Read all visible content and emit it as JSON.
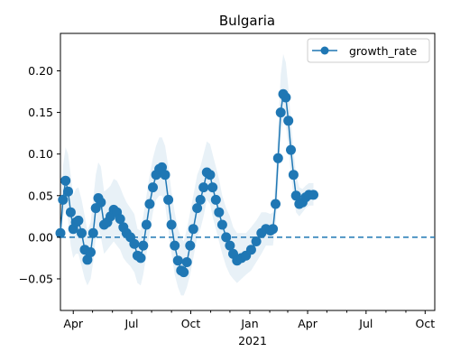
{
  "chart_data": {
    "type": "line",
    "title": "Bulgaria",
    "xlabel": "",
    "ylabel": "",
    "x_range": [
      "2020-03-12",
      "2021-10-16"
    ],
    "ylim": [
      -0.088,
      0.245
    ],
    "y_ticks": [
      -0.05,
      0.0,
      0.05,
      0.1,
      0.15,
      0.2
    ],
    "y_tick_labels": [
      "−0.05",
      "0.00",
      "0.05",
      "0.10",
      "0.15",
      "0.20"
    ],
    "x_ticks": [
      {
        "date": "2020-04-01",
        "label": "Apr"
      },
      {
        "date": "2020-07-01",
        "label": "Jul"
      },
      {
        "date": "2020-10-01",
        "label": "Oct"
      },
      {
        "date": "2021-01-01",
        "label": "Jan"
      },
      {
        "date": "2021-04-01",
        "label": "Apr"
      },
      {
        "date": "2021-07-01",
        "label": "Jul"
      },
      {
        "date": "2021-10-01",
        "label": "Oct"
      }
    ],
    "x_year_label": "2021",
    "legend": {
      "placement": "top-right"
    },
    "reference_line": {
      "y": 0,
      "style": "dashed"
    },
    "series": [
      {
        "name": "growth_rate",
        "color": "#1f77b4",
        "marker": "circle",
        "band_color": "#1f77b4",
        "points": [
          {
            "x": "2020-03-12",
            "y": 0.005,
            "lo": -0.005,
            "hi": 0.015
          },
          {
            "x": "2020-03-16",
            "y": 0.045,
            "lo": 0.025,
            "hi": 0.085
          },
          {
            "x": "2020-03-20",
            "y": 0.068,
            "lo": 0.035,
            "hi": 0.108
          },
          {
            "x": "2020-03-24",
            "y": 0.055,
            "lo": 0.02,
            "hi": 0.1
          },
          {
            "x": "2020-03-28",
            "y": 0.03,
            "lo": -0.01,
            "hi": 0.075
          },
          {
            "x": "2020-04-01",
            "y": 0.01,
            "lo": -0.025,
            "hi": 0.05
          },
          {
            "x": "2020-04-05",
            "y": 0.018,
            "lo": -0.02,
            "hi": 0.058
          },
          {
            "x": "2020-04-09",
            "y": 0.02,
            "lo": -0.02,
            "hi": 0.06
          },
          {
            "x": "2020-04-14",
            "y": 0.005,
            "lo": -0.035,
            "hi": 0.045
          },
          {
            "x": "2020-04-19",
            "y": -0.015,
            "lo": -0.05,
            "hi": 0.025
          },
          {
            "x": "2020-04-23",
            "y": -0.027,
            "lo": -0.058,
            "hi": 0.008
          },
          {
            "x": "2020-04-28",
            "y": -0.018,
            "lo": -0.05,
            "hi": 0.018
          },
          {
            "x": "2020-05-02",
            "y": 0.005,
            "lo": -0.03,
            "hi": 0.045
          },
          {
            "x": "2020-05-06",
            "y": 0.035,
            "lo": 0.0,
            "hi": 0.075
          },
          {
            "x": "2020-05-10",
            "y": 0.047,
            "lo": 0.01,
            "hi": 0.09
          },
          {
            "x": "2020-05-14",
            "y": 0.042,
            "lo": 0.0,
            "hi": 0.085
          },
          {
            "x": "2020-05-19",
            "y": 0.015,
            "lo": -0.02,
            "hi": 0.055
          },
          {
            "x": "2020-05-24",
            "y": 0.018,
            "lo": -0.015,
            "hi": 0.058
          },
          {
            "x": "2020-05-29",
            "y": 0.025,
            "lo": -0.01,
            "hi": 0.062
          },
          {
            "x": "2020-06-03",
            "y": 0.033,
            "lo": -0.005,
            "hi": 0.07
          },
          {
            "x": "2020-06-08",
            "y": 0.03,
            "lo": -0.01,
            "hi": 0.068
          },
          {
            "x": "2020-06-13",
            "y": 0.022,
            "lo": -0.015,
            "hi": 0.06
          },
          {
            "x": "2020-06-18",
            "y": 0.012,
            "lo": -0.025,
            "hi": 0.05
          },
          {
            "x": "2020-06-23",
            "y": 0.005,
            "lo": -0.03,
            "hi": 0.042
          },
          {
            "x": "2020-06-29",
            "y": 0.0,
            "lo": -0.035,
            "hi": 0.035
          },
          {
            "x": "2020-07-05",
            "y": -0.008,
            "lo": -0.042,
            "hi": 0.028
          },
          {
            "x": "2020-07-10",
            "y": -0.022,
            "lo": -0.055,
            "hi": 0.01
          },
          {
            "x": "2020-07-15",
            "y": -0.025,
            "lo": -0.058,
            "hi": 0.008
          },
          {
            "x": "2020-07-19",
            "y": -0.01,
            "lo": -0.045,
            "hi": 0.025
          },
          {
            "x": "2020-07-24",
            "y": 0.015,
            "lo": -0.02,
            "hi": 0.05
          },
          {
            "x": "2020-07-29",
            "y": 0.04,
            "lo": 0.005,
            "hi": 0.075
          },
          {
            "x": "2020-08-03",
            "y": 0.06,
            "lo": 0.03,
            "hi": 0.095
          },
          {
            "x": "2020-08-08",
            "y": 0.075,
            "lo": 0.045,
            "hi": 0.11
          },
          {
            "x": "2020-08-13",
            "y": 0.082,
            "lo": 0.05,
            "hi": 0.12
          },
          {
            "x": "2020-08-17",
            "y": 0.084,
            "lo": 0.05,
            "hi": 0.12
          },
          {
            "x": "2020-08-22",
            "y": 0.075,
            "lo": 0.04,
            "hi": 0.11
          },
          {
            "x": "2020-08-27",
            "y": 0.045,
            "lo": 0.01,
            "hi": 0.085
          },
          {
            "x": "2020-09-01",
            "y": 0.015,
            "lo": -0.02,
            "hi": 0.055
          },
          {
            "x": "2020-09-06",
            "y": -0.01,
            "lo": -0.045,
            "hi": 0.03
          },
          {
            "x": "2020-09-11",
            "y": -0.028,
            "lo": -0.06,
            "hi": 0.01
          },
          {
            "x": "2020-09-16",
            "y": -0.04,
            "lo": -0.07,
            "hi": 0.0
          },
          {
            "x": "2020-09-20",
            "y": -0.042,
            "lo": -0.07,
            "hi": -0.005
          },
          {
            "x": "2020-09-25",
            "y": -0.03,
            "lo": -0.06,
            "hi": 0.01
          },
          {
            "x": "2020-09-30",
            "y": -0.01,
            "lo": -0.045,
            "hi": 0.03
          },
          {
            "x": "2020-10-05",
            "y": 0.01,
            "lo": -0.025,
            "hi": 0.05
          },
          {
            "x": "2020-10-11",
            "y": 0.035,
            "lo": 0.0,
            "hi": 0.075
          },
          {
            "x": "2020-10-16",
            "y": 0.045,
            "lo": 0.01,
            "hi": 0.085
          },
          {
            "x": "2020-10-21",
            "y": 0.06,
            "lo": 0.025,
            "hi": 0.1
          },
          {
            "x": "2020-10-26",
            "y": 0.078,
            "lo": 0.045,
            "hi": 0.115
          },
          {
            "x": "2020-10-31",
            "y": 0.075,
            "lo": 0.04,
            "hi": 0.112
          },
          {
            "x": "2020-11-04",
            "y": 0.06,
            "lo": 0.025,
            "hi": 0.1
          },
          {
            "x": "2020-11-09",
            "y": 0.045,
            "lo": 0.01,
            "hi": 0.085
          },
          {
            "x": "2020-11-14",
            "y": 0.03,
            "lo": -0.005,
            "hi": 0.07
          },
          {
            "x": "2020-11-19",
            "y": 0.015,
            "lo": -0.02,
            "hi": 0.05
          },
          {
            "x": "2020-11-25",
            "y": 0.0,
            "lo": -0.035,
            "hi": 0.035
          },
          {
            "x": "2020-12-01",
            "y": -0.01,
            "lo": -0.045,
            "hi": 0.025
          },
          {
            "x": "2020-12-06",
            "y": -0.02,
            "lo": -0.05,
            "hi": 0.012
          },
          {
            "x": "2020-12-12",
            "y": -0.028,
            "lo": -0.055,
            "hi": 0.005
          },
          {
            "x": "2020-12-19",
            "y": -0.025,
            "lo": -0.05,
            "hi": 0.005
          },
          {
            "x": "2020-12-26",
            "y": -0.022,
            "lo": -0.045,
            "hi": 0.005
          },
          {
            "x": "2021-01-03",
            "y": -0.015,
            "lo": -0.04,
            "hi": 0.012
          },
          {
            "x": "2021-01-11",
            "y": -0.005,
            "lo": -0.03,
            "hi": 0.02
          },
          {
            "x": "2021-01-19",
            "y": 0.005,
            "lo": -0.02,
            "hi": 0.03
          },
          {
            "x": "2021-01-26",
            "y": 0.01,
            "lo": -0.01,
            "hi": 0.03
          },
          {
            "x": "2021-02-02",
            "y": 0.008,
            "lo": -0.01,
            "hi": 0.028
          },
          {
            "x": "2021-02-06",
            "y": 0.01,
            "lo": -0.01,
            "hi": 0.03
          },
          {
            "x": "2021-02-10",
            "y": 0.04,
            "lo": 0.015,
            "hi": 0.07
          },
          {
            "x": "2021-02-14",
            "y": 0.095,
            "lo": 0.06,
            "hi": 0.13
          },
          {
            "x": "2021-02-18",
            "y": 0.15,
            "lo": 0.12,
            "hi": 0.195
          },
          {
            "x": "2021-02-22",
            "y": 0.172,
            "lo": 0.14,
            "hi": 0.22
          },
          {
            "x": "2021-02-26",
            "y": 0.168,
            "lo": 0.135,
            "hi": 0.21
          },
          {
            "x": "2021-03-02",
            "y": 0.14,
            "lo": 0.11,
            "hi": 0.18
          },
          {
            "x": "2021-03-06",
            "y": 0.105,
            "lo": 0.075,
            "hi": 0.14
          },
          {
            "x": "2021-03-10",
            "y": 0.075,
            "lo": 0.05,
            "hi": 0.105
          },
          {
            "x": "2021-03-14",
            "y": 0.05,
            "lo": 0.03,
            "hi": 0.075
          },
          {
            "x": "2021-03-19",
            "y": 0.04,
            "lo": 0.025,
            "hi": 0.06
          },
          {
            "x": "2021-03-24",
            "y": 0.042,
            "lo": 0.03,
            "hi": 0.058
          },
          {
            "x": "2021-03-29",
            "y": 0.048,
            "lo": 0.035,
            "hi": 0.062
          },
          {
            "x": "2021-04-03",
            "y": 0.051,
            "lo": 0.038,
            "hi": 0.065
          },
          {
            "x": "2021-04-10",
            "y": 0.051,
            "lo": 0.038,
            "hi": 0.065
          }
        ]
      }
    ]
  }
}
